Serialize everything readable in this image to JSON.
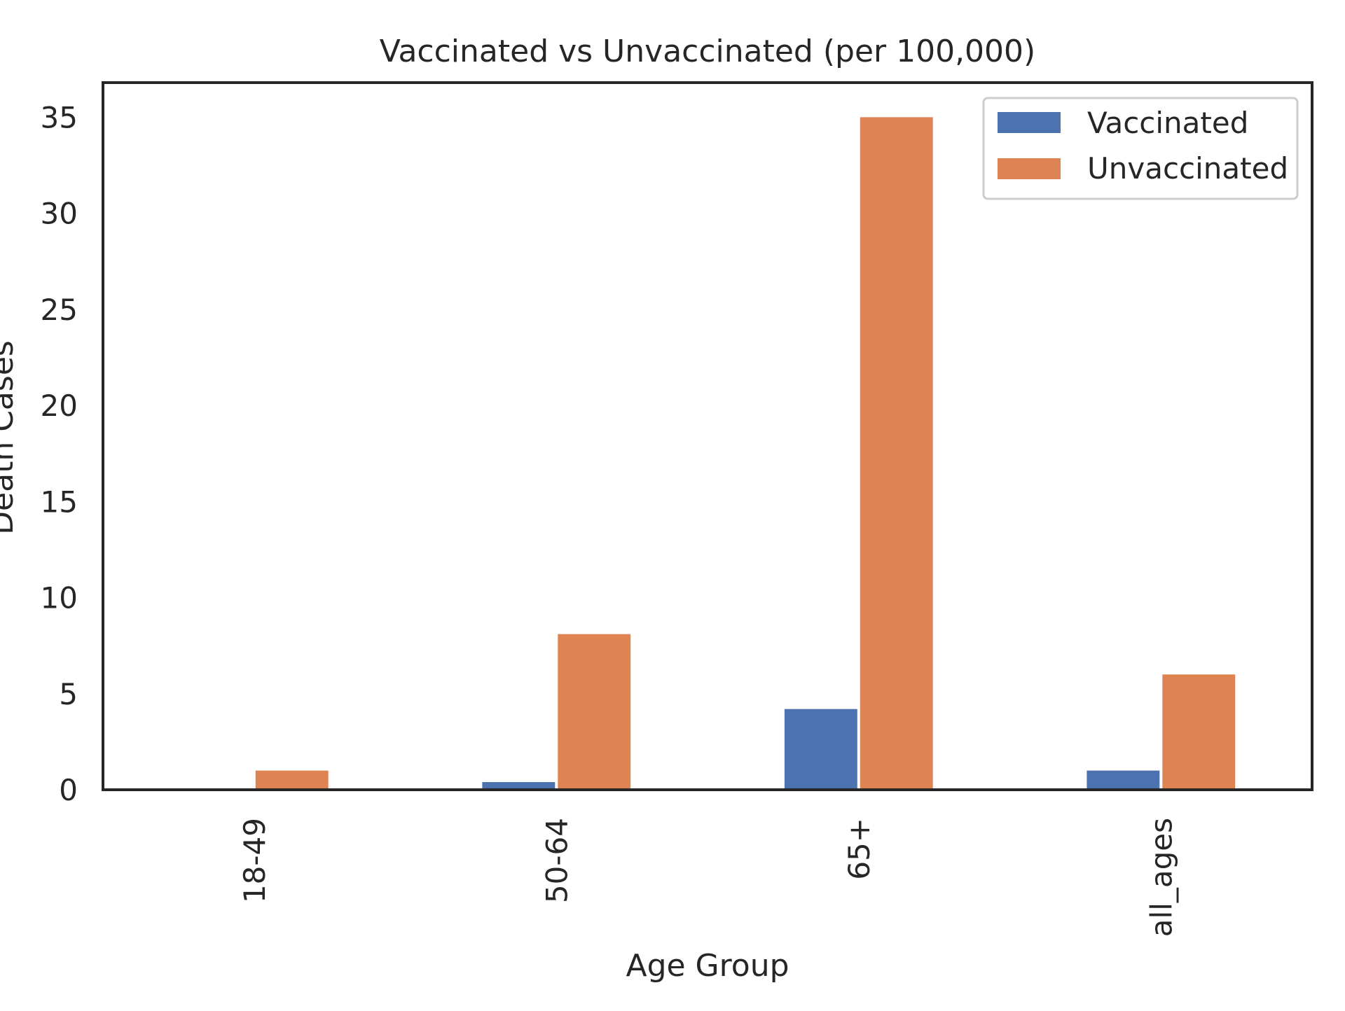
{
  "chart_data": {
    "type": "bar",
    "title": "Vaccinated vs Unvaccinated (per 100,000)",
    "xlabel": "Age Group",
    "ylabel": "Death Cases",
    "categories": [
      "18-49",
      "50-64",
      "65+",
      "all_ages"
    ],
    "series": [
      {
        "name": "Vaccinated",
        "color": "#4c72b0",
        "values": [
          0,
          0.4,
          4.2,
          1.0
        ]
      },
      {
        "name": "Unvaccinated",
        "color": "#dd8452",
        "values": [
          1.0,
          8.1,
          35.0,
          6.0
        ]
      }
    ],
    "ylim": [
      0,
      36.8
    ],
    "yticks": [
      0,
      5,
      10,
      15,
      20,
      25,
      30,
      35
    ],
    "ytick_labels": [
      "0",
      "5",
      "10",
      "15",
      "20",
      "25",
      "30",
      "35"
    ],
    "grid": false,
    "legend_position": "top-right"
  }
}
